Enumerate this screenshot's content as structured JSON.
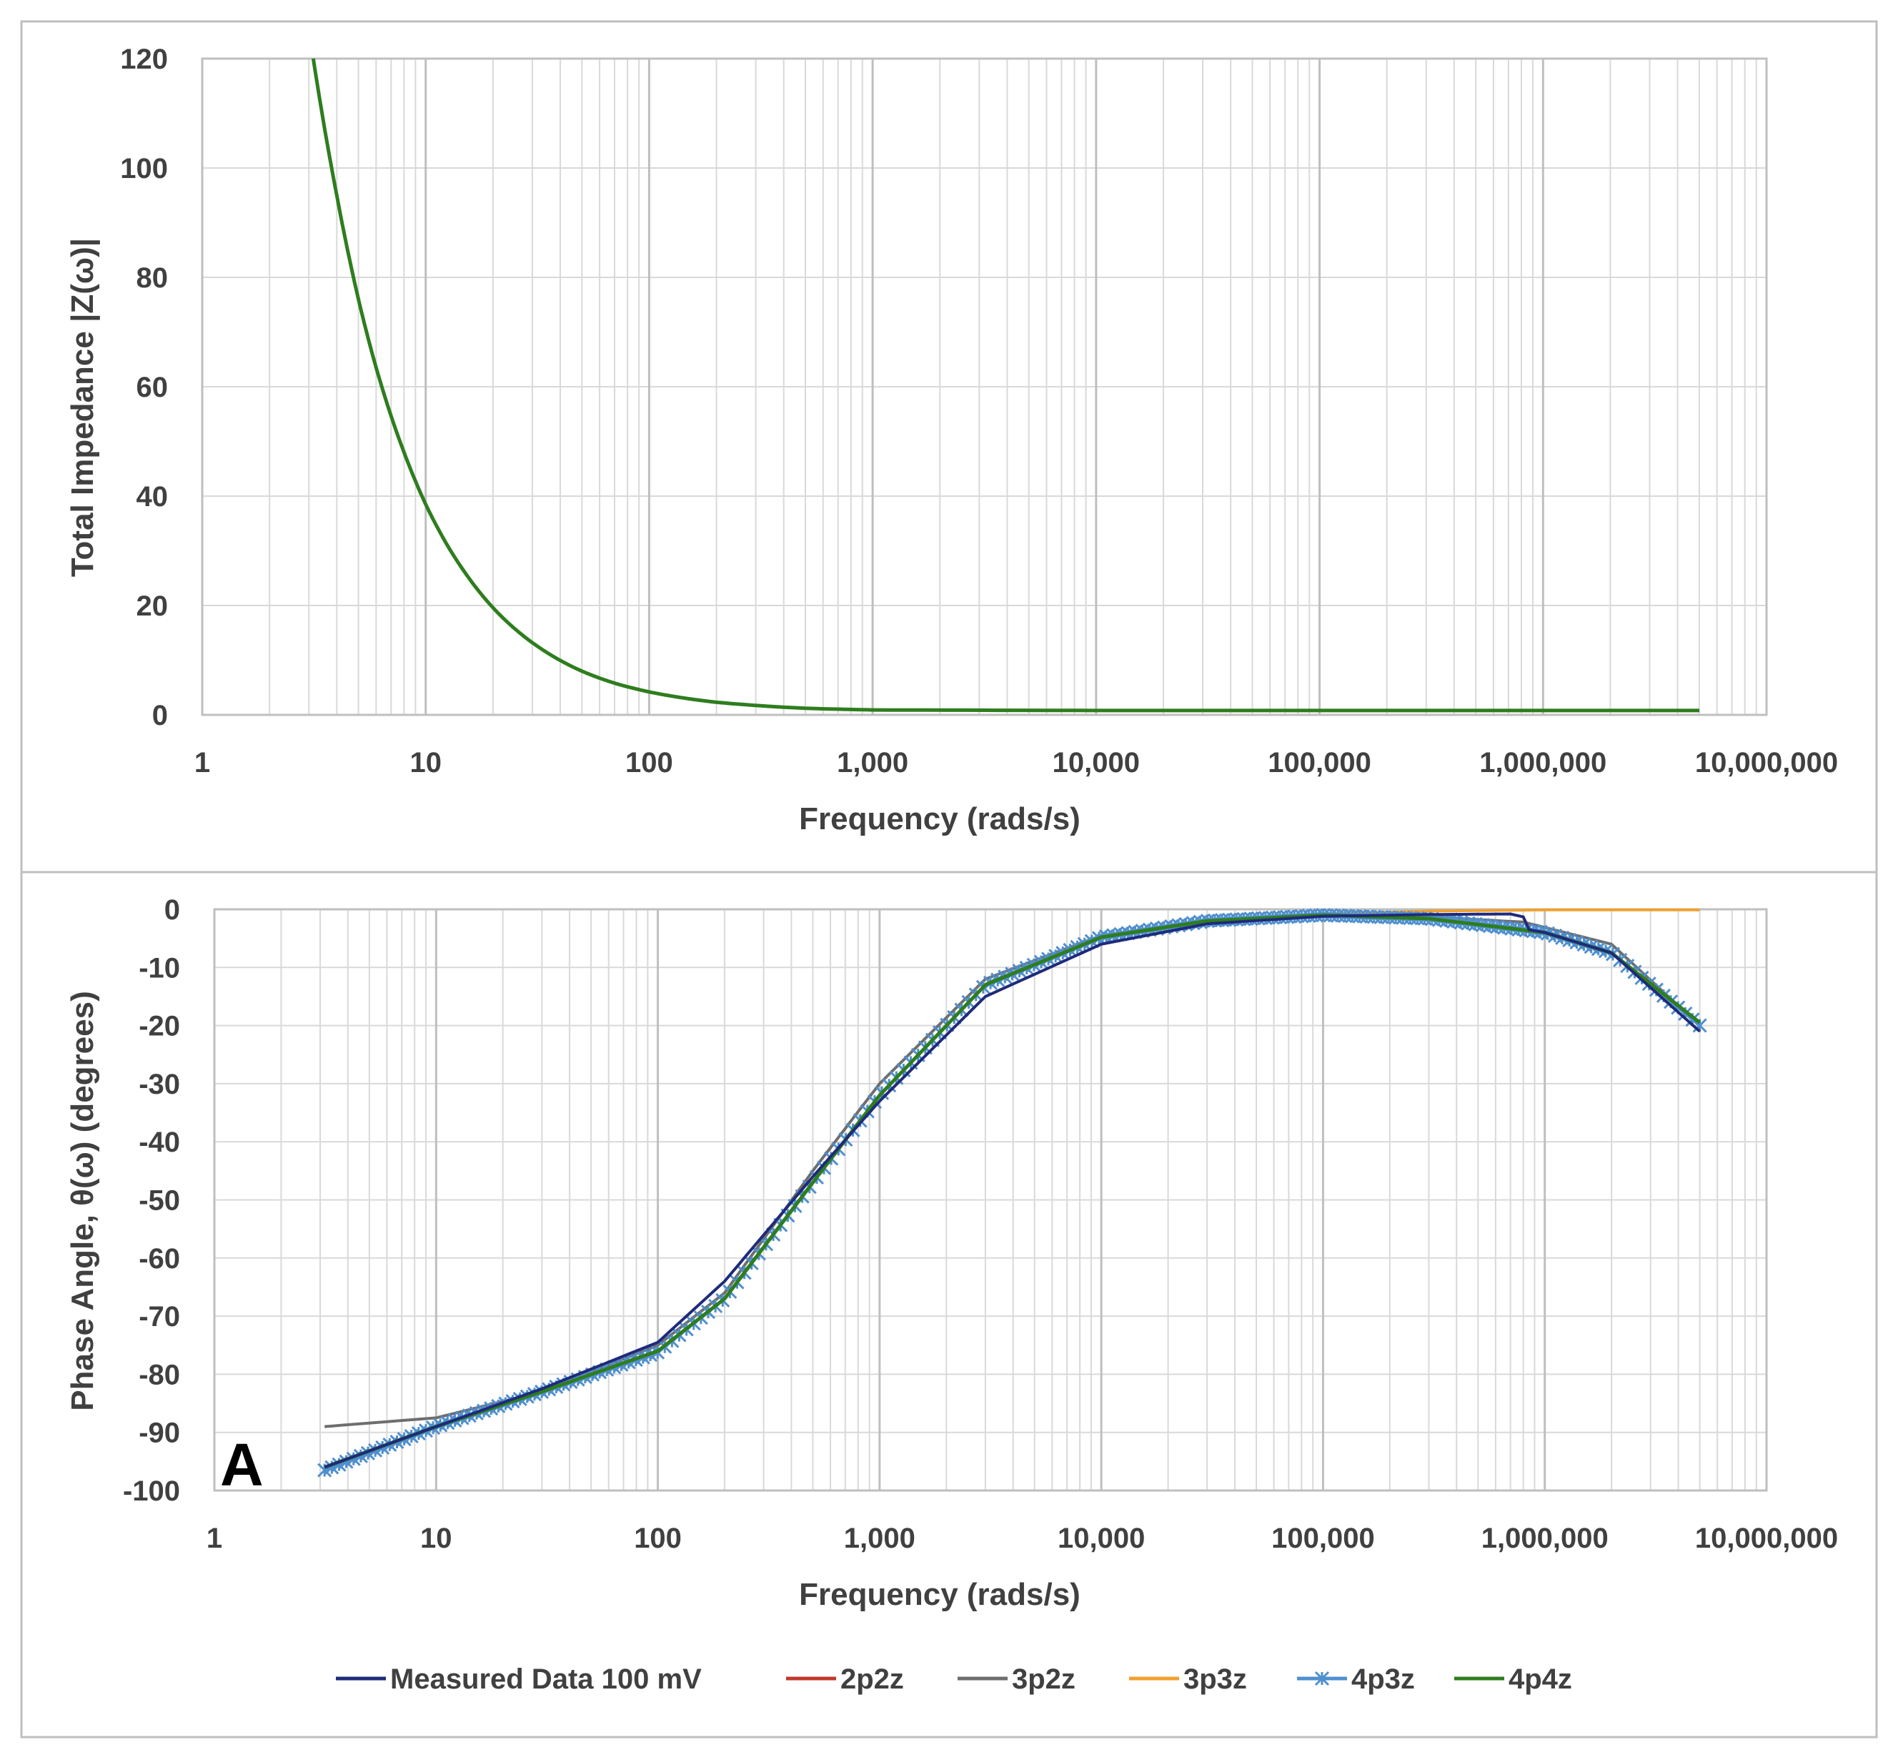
{
  "colors": {
    "measured": "#1f2a7a",
    "p2p2z": "#c0392b",
    "p3p2z": "#6e6e6e",
    "p3p3z": "#f0a030",
    "p4p3z": "#4f8fcf",
    "p4p4z": "#2e7d1e",
    "grid": "#d9d9d9",
    "grid_major": "#bfbfbf",
    "axis_text": "#404040",
    "frame": "#bfbfbf"
  },
  "panel_label": "A",
  "legend": [
    {
      "key": "measured",
      "label": "Measured Data 100 mV",
      "marker": "none"
    },
    {
      "key": "p2p2z",
      "label": "2p2z",
      "marker": "none"
    },
    {
      "key": "p3p2z",
      "label": "3p2z",
      "marker": "none"
    },
    {
      "key": "p3p3z",
      "label": "3p3z",
      "marker": "none"
    },
    {
      "key": "p4p3z",
      "label": "4p3z",
      "marker": "star"
    },
    {
      "key": "p4p4z",
      "label": "4p4z",
      "marker": "none"
    }
  ],
  "chart_data": [
    {
      "type": "line",
      "id": "impedance",
      "title": "",
      "xlabel": "Frequency (rads/s)",
      "ylabel": "Total Impedance |Z(ω)|",
      "xscale": "log",
      "xlim": [
        1,
        10000000
      ],
      "ylim": [
        0,
        120
      ],
      "xticks": [
        1,
        10,
        100,
        1000,
        10000,
        100000,
        1000000,
        10000000
      ],
      "xtick_labels": [
        "1",
        "10",
        "100",
        "1,000",
        "10,000",
        "100,000",
        "1,000,000",
        "10,000,000"
      ],
      "yticks": [
        0,
        20,
        40,
        60,
        80,
        100,
        120
      ],
      "ytick_labels": [
        "0",
        "20",
        "40",
        "60",
        "80",
        "100",
        "120"
      ],
      "grid": true,
      "series": [
        {
          "key": "measured",
          "name": "Measured Data 100 mV",
          "x": [
            3.14,
            4,
            5,
            6,
            8,
            10,
            15,
            20,
            30,
            50,
            70,
            100,
            200,
            500,
            1000,
            10000,
            100000,
            1000000,
            5000000
          ],
          "y": [
            120,
            95,
            76,
            63.5,
            48,
            38.5,
            26,
            19.6,
            13.2,
            8,
            5.8,
            4.2,
            2.3,
            1.2,
            0.9,
            0.8,
            0.8,
            0.8,
            0.8
          ]
        },
        {
          "key": "p4p4z",
          "name": "4p4z",
          "x": [
            3.14,
            4,
            5,
            6,
            8,
            10,
            15,
            20,
            30,
            50,
            70,
            100,
            200,
            500,
            1000,
            10000,
            100000,
            1000000,
            5000000
          ],
          "y": [
            120,
            95,
            76,
            63.5,
            48,
            38.5,
            26,
            19.6,
            13.2,
            8,
            5.8,
            4.2,
            2.3,
            1.2,
            0.9,
            0.8,
            0.8,
            0.8,
            0.8
          ]
        }
      ]
    },
    {
      "type": "line",
      "id": "phase",
      "title": "",
      "xlabel": "Frequency (rads/s)",
      "ylabel": "Phase Angle, θ(ω) (degrees)",
      "xscale": "log",
      "xlim": [
        1,
        10000000
      ],
      "ylim": [
        -100,
        0
      ],
      "xticks": [
        1,
        10,
        100,
        1000,
        10000,
        100000,
        1000000,
        10000000
      ],
      "xtick_labels": [
        "1",
        "10",
        "100",
        "1,000",
        "10,000",
        "100,000",
        "1,000,000",
        "10,000,000"
      ],
      "yticks": [
        0,
        -10,
        -20,
        -30,
        -40,
        -50,
        -60,
        -70,
        -80,
        -90,
        -100
      ],
      "ytick_labels": [
        "0",
        "-10",
        "-20",
        "-30",
        "-40",
        "-50",
        "-60",
        "-70",
        "-80",
        "-90",
        "-100"
      ],
      "grid": true,
      "series": [
        {
          "key": "p3p2z",
          "name": "3p2z",
          "x": [
            3.14,
            10,
            30,
            100,
            200,
            500,
            1000,
            3000,
            10000,
            30000,
            100000,
            300000,
            800000,
            2000000,
            5000000
          ],
          "y": [
            -89,
            -87.5,
            -83,
            -75,
            -66,
            -45,
            -30,
            -12,
            -4.5,
            -2,
            -1,
            -1.3,
            -2.2,
            -6,
            -20
          ]
        },
        {
          "key": "p3p3z",
          "name": "3p3z",
          "x": [
            3.14,
            10,
            30,
            100,
            200,
            500,
            1000,
            3000,
            10000,
            30000,
            100000,
            300000,
            1000000,
            5000000
          ],
          "y": [
            -96,
            -89,
            -83,
            -76,
            -67,
            -47,
            -32,
            -13,
            -4.8,
            -2,
            -0.8,
            -0.3,
            -0.1,
            -0.1
          ]
        },
        {
          "key": "p2p2z",
          "name": "2p2z",
          "x": [
            3.14,
            10,
            30,
            100,
            200,
            500,
            1000,
            3000,
            10000,
            30000,
            100000,
            300000,
            1000000,
            2000000,
            5000000
          ],
          "y": [
            -96.5,
            -89,
            -83,
            -76,
            -67,
            -47,
            -32,
            -13,
            -4.8,
            -2,
            -1,
            -1.6,
            -4,
            -7.5,
            -19.5
          ]
        },
        {
          "key": "p4p3z",
          "name": "4p3z",
          "x": [
            3.14,
            10,
            30,
            100,
            200,
            500,
            1000,
            3000,
            10000,
            30000,
            100000,
            300000,
            1000000,
            2000000,
            5000000
          ],
          "y": [
            -96.5,
            -89,
            -83,
            -76.2,
            -67,
            -47,
            -32,
            -13,
            -4.8,
            -2,
            -1,
            -1.6,
            -4,
            -7.5,
            -20
          ]
        },
        {
          "key": "p4p4z",
          "name": "4p4z",
          "x": [
            3.14,
            10,
            30,
            100,
            200,
            500,
            1000,
            3000,
            10000,
            30000,
            100000,
            300000,
            1000000,
            2000000,
            5000000
          ],
          "y": [
            -96,
            -89,
            -83,
            -76,
            -67,
            -47,
            -32,
            -13,
            -4.8,
            -2,
            -1,
            -1.6,
            -4,
            -7.5,
            -19.5
          ]
        },
        {
          "key": "measured",
          "name": "Measured Data 100 mV",
          "x": [
            3.14,
            10,
            30,
            100,
            200,
            500,
            1000,
            3000,
            10000,
            30000,
            100000,
            300000,
            700000,
            800000,
            850000,
            1000000,
            2000000,
            5000000
          ],
          "y": [
            -96,
            -89,
            -82.5,
            -74.5,
            -64,
            -46,
            -33,
            -15,
            -6,
            -2.5,
            -1.2,
            -0.9,
            -0.8,
            -1.3,
            -3.5,
            -4,
            -7.5,
            -21
          ]
        }
      ]
    }
  ]
}
